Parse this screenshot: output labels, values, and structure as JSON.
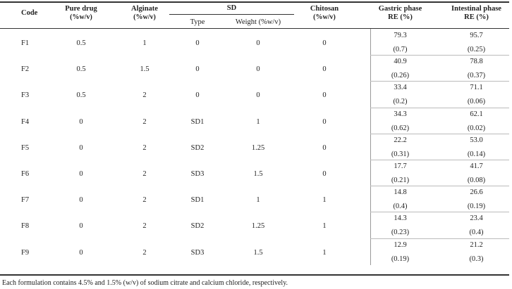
{
  "table": {
    "headers": {
      "code": "Code",
      "pure_drug": "Pure drug",
      "pure_drug_unit": "(%w/v)",
      "alginate": "Alginate",
      "alginate_unit": "(%w/v)",
      "sd": "SD",
      "sd_type": "Type",
      "sd_weight": "Weight (%w/v)",
      "chitosan": "Chitosan",
      "chitosan_unit": "(%w/v)",
      "gastric": "Gastric phase",
      "gastric_unit": "RE (%)",
      "intestinal": "Intestinal phase",
      "intestinal_unit": "RE (%)"
    },
    "rows": [
      {
        "code": "F1",
        "pure_drug": "0.5",
        "alginate": "1",
        "sd_type": "0",
        "sd_weight": "0",
        "chitosan": "0",
        "gastric": "79.3",
        "gastric_sd": "(0.7)",
        "intestinal": "95.7",
        "intestinal_sd": "(0.25)"
      },
      {
        "code": "F2",
        "pure_drug": "0.5",
        "alginate": "1.5",
        "sd_type": "0",
        "sd_weight": "0",
        "chitosan": "0",
        "gastric": "40.9",
        "gastric_sd": "(0.26)",
        "intestinal": "78.8",
        "intestinal_sd": "(0.37)"
      },
      {
        "code": "F3",
        "pure_drug": "0.5",
        "alginate": "2",
        "sd_type": "0",
        "sd_weight": "0",
        "chitosan": "0",
        "gastric": "33.4",
        "gastric_sd": "(0.2)",
        "intestinal": "71.1",
        "intestinal_sd": "(0.06)"
      },
      {
        "code": "F4",
        "pure_drug": "0",
        "alginate": "2",
        "sd_type": "SD1",
        "sd_weight": "1",
        "chitosan": "0",
        "gastric": "34.3",
        "gastric_sd": "(0.62)",
        "intestinal": "62.1",
        "intestinal_sd": "(0.02)"
      },
      {
        "code": "F5",
        "pure_drug": "0",
        "alginate": "2",
        "sd_type": "SD2",
        "sd_weight": "1.25",
        "chitosan": "0",
        "gastric": "22.2",
        "gastric_sd": "(0.31)",
        "intestinal": "53.0",
        "intestinal_sd": "(0.14)"
      },
      {
        "code": "F6",
        "pure_drug": "0",
        "alginate": "2",
        "sd_type": "SD3",
        "sd_weight": "1.5",
        "chitosan": "0",
        "gastric": "17.7",
        "gastric_sd": "(0.21)",
        "intestinal": "41.7",
        "intestinal_sd": "(0.08)"
      },
      {
        "code": "F7",
        "pure_drug": "0",
        "alginate": "2",
        "sd_type": "SD1",
        "sd_weight": "1",
        "chitosan": "1",
        "gastric": "14.8",
        "gastric_sd": "(0.4)",
        "intestinal": "26.6",
        "intestinal_sd": "(0.19)"
      },
      {
        "code": "F8",
        "pure_drug": "0",
        "alginate": "2",
        "sd_type": "SD2",
        "sd_weight": "1.25",
        "chitosan": "1",
        "gastric": "14.3",
        "gastric_sd": "(0.23)",
        "intestinal": "23.4",
        "intestinal_sd": "(0.4)"
      },
      {
        "code": "F9",
        "pure_drug": "0",
        "alginate": "2",
        "sd_type": "SD3",
        "sd_weight": "1.5",
        "chitosan": "1",
        "gastric": "12.9",
        "gastric_sd": "(0.19)",
        "intestinal": "21.2",
        "intestinal_sd": "(0.3)"
      }
    ],
    "footnote": "Each formulation contains 4.5% and 1.5% (w/v) of sodium citrate and calcium chloride, respectively."
  }
}
